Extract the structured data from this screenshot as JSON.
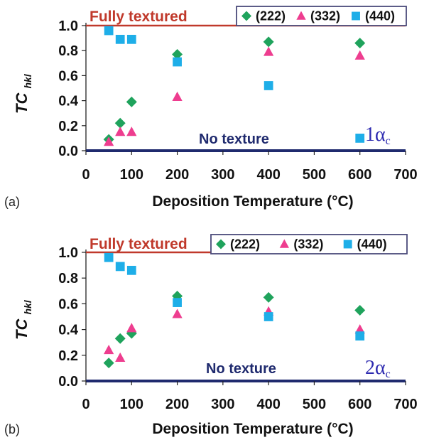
{
  "chart_data": [
    {
      "type": "scatter",
      "panel_label": "(a)",
      "xlabel": "Deposition Temperature (°C)",
      "ylabel_main": "TC",
      "ylabel_sub": "hkl",
      "xlim": [
        0,
        700
      ],
      "ylim": [
        0,
        1.0
      ],
      "xticks": [
        "0",
        "100",
        "200",
        "300",
        "400",
        "500",
        "600",
        "700"
      ],
      "yticks": [
        "0.0",
        "0.2",
        "0.4",
        "0.6",
        "0.8",
        "1.0"
      ],
      "grid": false,
      "legend_position": "top-right",
      "annotations": {
        "fully_textured": "Fully textured",
        "no_texture": "No texture",
        "condition_main": "1α",
        "condition_sub": "c"
      },
      "reference_lines": [
        1.0,
        0.0
      ],
      "series": [
        {
          "name": "(222)",
          "marker": "diamond",
          "color": "#1fa35c",
          "x": [
            50,
            75,
            100,
            200,
            400,
            600
          ],
          "y": [
            0.09,
            0.22,
            0.39,
            0.77,
            0.87,
            0.86
          ]
        },
        {
          "name": "(332)",
          "marker": "triangle",
          "color": "#ee3d8f",
          "x": [
            50,
            75,
            100,
            200,
            400,
            600
          ],
          "y": [
            0.07,
            0.15,
            0.15,
            0.43,
            0.79,
            0.76
          ]
        },
        {
          "name": "(440)",
          "marker": "square",
          "color": "#1eaee8",
          "x": [
            50,
            75,
            100,
            200,
            400,
            600
          ],
          "y": [
            0.96,
            0.89,
            0.89,
            0.71,
            0.52,
            0.1
          ]
        }
      ]
    },
    {
      "type": "scatter",
      "panel_label": "(b)",
      "xlabel": "Deposition Temperature (°C)",
      "ylabel_main": "TC",
      "ylabel_sub": "hkl",
      "xlim": [
        0,
        700
      ],
      "ylim": [
        0,
        1.0
      ],
      "xticks": [
        "0",
        "100",
        "200",
        "300",
        "400",
        "500",
        "600",
        "700"
      ],
      "yticks": [
        "0.0",
        "0.2",
        "0.4",
        "0.6",
        "0.8",
        "1.0"
      ],
      "grid": false,
      "legend_position": "top-right",
      "annotations": {
        "fully_textured": "Fully textured",
        "no_texture": "No texture",
        "condition_main": "2α",
        "condition_sub": "c"
      },
      "reference_lines": [
        1.0,
        0.0
      ],
      "series": [
        {
          "name": "(222)",
          "marker": "diamond",
          "color": "#1fa35c",
          "x": [
            50,
            75,
            100,
            200,
            400,
            600
          ],
          "y": [
            0.14,
            0.33,
            0.37,
            0.66,
            0.65,
            0.55
          ]
        },
        {
          "name": "(332)",
          "marker": "triangle",
          "color": "#ee3d8f",
          "x": [
            50,
            75,
            100,
            200,
            400,
            600
          ],
          "y": [
            0.24,
            0.18,
            0.41,
            0.52,
            0.54,
            0.4
          ]
        },
        {
          "name": "(440)",
          "marker": "square",
          "color": "#1eaee8",
          "x": [
            50,
            75,
            100,
            200,
            400,
            600
          ],
          "y": [
            0.96,
            0.89,
            0.86,
            0.61,
            0.5,
            0.35
          ]
        }
      ]
    }
  ],
  "colors": {
    "fully_textured_line": "#c0392b",
    "no_texture_line": "#1f2a6e",
    "legend_border": "#4a4a7a"
  }
}
